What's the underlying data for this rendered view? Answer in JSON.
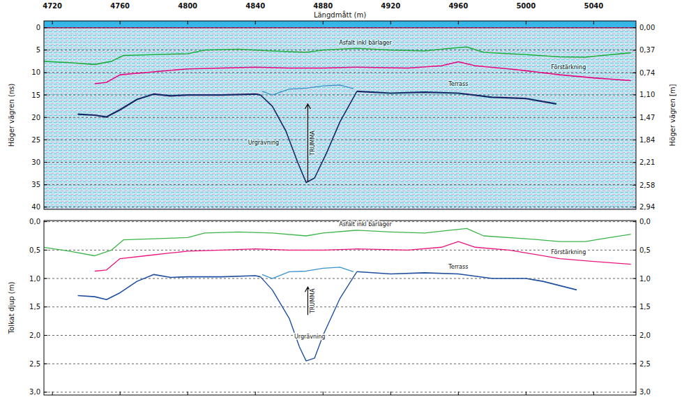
{
  "chart_data": [
    {
      "type": "line",
      "x_label": "Längdmått (m)",
      "y_label": "Höger vägren (ns)",
      "y2_label": "Höger vägren [m]",
      "xlim": [
        4715,
        5065
      ],
      "xticks": [
        4720,
        4760,
        4800,
        4840,
        4880,
        4920,
        4960,
        5000,
        5040
      ],
      "ylim": [
        40.5,
        -1.5
      ],
      "yticks": [
        0,
        5,
        10,
        15,
        20,
        25,
        30,
        35,
        40
      ],
      "y2lim": [
        2.977,
        -0.11
      ],
      "y2ticks": [
        {
          "value": 0,
          "label": "0,00"
        },
        {
          "value": 0.37,
          "label": "0,37"
        },
        {
          "value": 0.74,
          "label": "0,74"
        },
        {
          "value": 1.1,
          "label": "1,10"
        },
        {
          "value": 1.47,
          "label": "1,47"
        },
        {
          "value": 1.84,
          "label": "1,84"
        },
        {
          "value": 2.21,
          "label": "2,21"
        },
        {
          "value": 2.58,
          "label": "2,58"
        },
        {
          "value": 2.94,
          "label": "2,94"
        }
      ],
      "grid": true,
      "series": [
        {
          "name": "Asfalt inkl bärlager",
          "color": "#1fae3f",
          "x": [
            4715,
            4730,
            4745,
            4755,
            4762,
            4780,
            4800,
            4810,
            4830,
            4850,
            4870,
            4880,
            4900,
            4920,
            4940,
            4955,
            4965,
            4975,
            5000,
            5020,
            5035,
            5045,
            5062
          ],
          "values": [
            7.5,
            7.8,
            8.2,
            7.5,
            6.2,
            6.0,
            5.8,
            5.0,
            4.8,
            5.2,
            5.5,
            5.0,
            4.6,
            5.0,
            5.2,
            4.6,
            4.3,
            5.5,
            6.0,
            6.5,
            6.6,
            6.2,
            5.6
          ]
        },
        {
          "name": "Förstärkning",
          "color": "#e5097f",
          "x": [
            4745,
            4752,
            4760,
            4775,
            4790,
            4800,
            4820,
            4840,
            4860,
            4880,
            4900,
            4930,
            4950,
            4960,
            4970,
            4990,
            5000,
            5020,
            5040,
            5062
          ],
          "values": [
            12.5,
            12.2,
            10.5,
            10.0,
            9.5,
            9.2,
            9.0,
            8.8,
            9.0,
            9.0,
            8.8,
            9.0,
            8.5,
            7.6,
            8.5,
            9.2,
            9.6,
            10.5,
            11.2,
            11.8
          ]
        },
        {
          "name": "Terrass",
          "color": "#152a66",
          "x": [
            4735,
            4745,
            4752,
            4760,
            4770,
            4780,
            4790,
            4800,
            4820,
            4840,
            4843,
            null,
            4900,
            4920,
            4940,
            4960,
            4980,
            5000,
            5018
          ],
          "values": [
            19.3,
            19.5,
            19.9,
            18.3,
            16.0,
            14.8,
            15.2,
            15.0,
            15.0,
            14.8,
            15.0,
            null,
            14.2,
            14.6,
            14.4,
            14.6,
            15.5,
            15.8,
            17.0
          ]
        },
        {
          "color": "#3a8fc7",
          "x": [
            4844,
            4850,
            4860,
            4870,
            4880,
            4890,
            4898
          ],
          "values": [
            14.2,
            15.0,
            13.7,
            13.5,
            13.0,
            12.8,
            13.6
          ]
        },
        {
          "name": "Urgrävning",
          "color": "#152a66",
          "x": [
            4843,
            4850,
            4858,
            4865,
            4870,
            4875,
            4882,
            4890,
            4900
          ],
          "values": [
            15.0,
            17.5,
            23.0,
            30.0,
            34.5,
            33.5,
            28.0,
            21.0,
            14.2
          ]
        }
      ],
      "annotations": [
        {
          "text": "TRUMMA",
          "x": 4871,
          "y": 17
        }
      ]
    },
    {
      "type": "line",
      "y_label": "Tolkat djup (m)",
      "xlim": [
        4715,
        5065
      ],
      "xticks": [
        4720,
        4760,
        4800,
        4840,
        4880,
        4920,
        4960,
        5000,
        5040
      ],
      "tick_labels": "y",
      "ylim": [
        3.05,
        -0.02
      ],
      "yticks": [
        {
          "value": 0,
          "label": "0,0"
        },
        {
          "value": 0.5,
          "label": "0,5"
        },
        {
          "value": 1,
          "label": "1,0"
        },
        {
          "value": 1.5,
          "label": "1,5"
        },
        {
          "value": 2,
          "label": "2,0"
        },
        {
          "value": 2.5,
          "label": "2,5"
        },
        {
          "value": 3,
          "label": "3,0"
        }
      ],
      "y2lim": [
        3.05,
        -0.02
      ],
      "y2ticks": [
        {
          "value": 0,
          "label": "0,0"
        },
        {
          "value": 0.5,
          "label": "0,5"
        },
        {
          "value": 1,
          "label": "1,0"
        },
        {
          "value": 1.5,
          "label": "1,5"
        },
        {
          "value": 2,
          "label": "2,0"
        },
        {
          "value": 2.5,
          "label": "2,5"
        },
        {
          "value": 3,
          "label": "3,0"
        }
      ],
      "grid": true,
      "series": [
        {
          "name": "Asfalt inkl bärlager",
          "color": "#3cb44a",
          "x": [
            4715,
            4730,
            4745,
            4755,
            4762,
            4780,
            4800,
            4810,
            4830,
            4850,
            4870,
            4880,
            4900,
            4920,
            4940,
            4955,
            4965,
            4975,
            5000,
            5020,
            5035,
            5045,
            5062
          ],
          "values": [
            0.45,
            0.52,
            0.6,
            0.5,
            0.32,
            0.3,
            0.28,
            0.2,
            0.18,
            0.2,
            0.25,
            0.2,
            0.15,
            0.18,
            0.2,
            0.15,
            0.12,
            0.25,
            0.3,
            0.35,
            0.35,
            0.3,
            0.22
          ]
        },
        {
          "name": "Förstärkning",
          "color": "#e8167e",
          "x": [
            4745,
            4752,
            4760,
            4775,
            4790,
            4800,
            4820,
            4840,
            4860,
            4880,
            4900,
            4930,
            4950,
            4960,
            4970,
            4990,
            5000,
            5020,
            5040,
            5062
          ],
          "values": [
            0.87,
            0.85,
            0.65,
            0.6,
            0.55,
            0.52,
            0.5,
            0.48,
            0.5,
            0.5,
            0.48,
            0.5,
            0.45,
            0.35,
            0.45,
            0.5,
            0.55,
            0.65,
            0.7,
            0.75
          ]
        },
        {
          "name": "Terrass",
          "color": "#1f4f9e",
          "x": [
            4735,
            4745,
            4752,
            4760,
            4770,
            4780,
            4790,
            4800,
            4820,
            4840,
            4843,
            null,
            4900,
            4920,
            4940,
            4960,
            4980,
            5000,
            5010,
            5030
          ],
          "values": [
            1.3,
            1.32,
            1.37,
            1.25,
            1.05,
            0.93,
            0.98,
            0.97,
            0.97,
            0.95,
            0.97,
            null,
            0.88,
            0.92,
            0.9,
            0.92,
            1.0,
            1.0,
            1.05,
            1.2
          ]
        },
        {
          "color": "#3a93cf",
          "x": [
            4844,
            4850,
            4860,
            4870,
            4880,
            4890,
            4898
          ],
          "values": [
            0.93,
            1.0,
            0.88,
            0.87,
            0.82,
            0.8,
            0.88
          ]
        },
        {
          "name": "Urgrävning",
          "color": "#1f4f9e",
          "x": [
            4843,
            4850,
            4860,
            4866,
            4870,
            4875,
            4880,
            4890,
            4900
          ],
          "values": [
            0.97,
            1.2,
            1.7,
            2.2,
            2.45,
            2.4,
            2.0,
            1.35,
            0.88
          ]
        }
      ],
      "annotations": [
        {
          "text": "TRUMMA",
          "x": 4871,
          "y": 1.15
        }
      ]
    }
  ]
}
